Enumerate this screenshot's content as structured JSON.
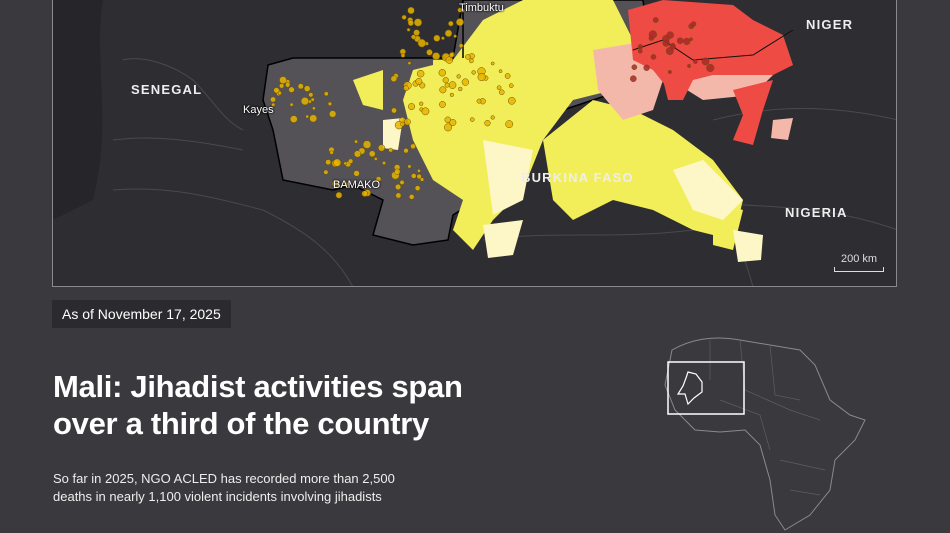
{
  "map": {
    "labels": {
      "timbuktu": "Timbuktu",
      "niger": "NIGER",
      "senegal": "SENEGAL",
      "kayes": "Kayes",
      "bamako": "BAMAKO",
      "burkina": "BURKINA FASO",
      "nigeria": "NIGERIA"
    },
    "scale": "200 km",
    "colors": {
      "background": "#2e2d31",
      "mali": "#545257",
      "zone_yellow": "#f2ee5a",
      "zone_pale": "#fdf6c6",
      "zone_red": "#ee4b45",
      "zone_pink": "#f4b8ab",
      "incident_dot": "#e8b400"
    }
  },
  "date_badge": "As of November 17, 2025",
  "title_line1": "Mali: Jihadist activities span",
  "title_line2": "over a third of the country",
  "subtitle_line1": "So far in 2025, NGO ACLED has recorded more than 2,500",
  "subtitle_line2": "deaths in nearly 1,100 violent incidents involving jihadists",
  "inset": {
    "highlight_color": "#ffffff"
  }
}
